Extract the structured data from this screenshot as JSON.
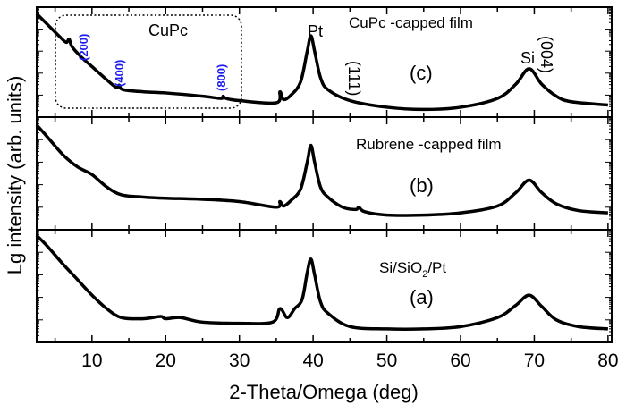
{
  "chart_data": {
    "type": "line",
    "xlabel": "2-Theta/Omega (deg)",
    "ylabel": "Lg intensity (arb. units)",
    "xlim": [
      2.5,
      80.5
    ],
    "xticks": [
      10,
      20,
      30,
      40,
      50,
      60,
      70,
      80
    ],
    "y_scale": "log",
    "y_tick_labels_shown": false,
    "grid": false,
    "panels": [
      {
        "id": "c",
        "label": "(c)",
        "title": "CuPc -capped film",
        "ylim": [
          0,
          10
        ],
        "points": [
          [
            2.5,
            9.4
          ],
          [
            4,
            8.4
          ],
          [
            5.5,
            7.4
          ],
          [
            6.5,
            6.8
          ],
          [
            6.9,
            7.1
          ],
          [
            7.3,
            6.4
          ],
          [
            8.5,
            5.5
          ],
          [
            10,
            4.6
          ],
          [
            12,
            3.4
          ],
          [
            13.3,
            2.7
          ],
          [
            13.7,
            2.9
          ],
          [
            14.2,
            2.5
          ],
          [
            17,
            2.3
          ],
          [
            20,
            2.2
          ],
          [
            25,
            1.9
          ],
          [
            27.5,
            1.7
          ],
          [
            27.8,
            1.9
          ],
          [
            28.2,
            1.7
          ],
          [
            30,
            1.5
          ],
          [
            35,
            1.3
          ],
          [
            35.5,
            2.3
          ],
          [
            36,
            1.6
          ],
          [
            37,
            2.0
          ],
          [
            38.3,
            3.2
          ],
          [
            39.2,
            6.0
          ],
          [
            39.7,
            7.4
          ],
          [
            40.2,
            6.0
          ],
          [
            41,
            3.6
          ],
          [
            42,
            2.5
          ],
          [
            45,
            1.5
          ],
          [
            50,
            0.9
          ],
          [
            55,
            0.7
          ],
          [
            60,
            0.9
          ],
          [
            65,
            1.7
          ],
          [
            67.5,
            3.0
          ],
          [
            69.3,
            4.4
          ],
          [
            71,
            3.0
          ],
          [
            73,
            1.9
          ],
          [
            75,
            1.4
          ],
          [
            80,
            1.1
          ]
        ],
        "annotations": {
          "box_title": "CuPc",
          "cupc_peaks": [
            "(200)",
            "(400)",
            "(800)"
          ],
          "pt_label": "Pt",
          "pt_index": "(111)",
          "si_label": "Si",
          "si_index": "(004)"
        }
      },
      {
        "id": "b",
        "label": "(b)",
        "title": "Rubrene -capped film",
        "ylim": [
          0,
          10
        ],
        "points": [
          [
            2.5,
            9.3
          ],
          [
            4,
            8.2
          ],
          [
            6,
            6.7
          ],
          [
            8,
            5.6
          ],
          [
            10,
            4.9
          ],
          [
            12,
            3.8
          ],
          [
            14,
            3.1
          ],
          [
            17,
            2.9
          ],
          [
            20,
            2.8
          ],
          [
            25,
            2.7
          ],
          [
            30,
            2.5
          ],
          [
            35,
            2.0
          ],
          [
            35.5,
            2.5
          ],
          [
            36,
            2.1
          ],
          [
            37,
            2.6
          ],
          [
            38.3,
            3.6
          ],
          [
            39.2,
            6.0
          ],
          [
            39.7,
            7.5
          ],
          [
            40.2,
            6.0
          ],
          [
            41,
            3.8
          ],
          [
            42,
            2.9
          ],
          [
            44,
            2.0
          ],
          [
            45.8,
            1.8
          ],
          [
            46.2,
            2.0
          ],
          [
            47,
            1.6
          ],
          [
            50,
            1.3
          ],
          [
            55,
            1.3
          ],
          [
            60,
            1.5
          ],
          [
            65,
            2.1
          ],
          [
            67.5,
            3.3
          ],
          [
            69.3,
            4.4
          ],
          [
            71,
            3.3
          ],
          [
            73,
            2.3
          ],
          [
            76,
            1.7
          ],
          [
            80,
            1.5
          ]
        ]
      },
      {
        "id": "a",
        "label": "(a)",
        "title": "Si/SiO",
        "title_sub": "2",
        "title_end": "/Pt",
        "ylim": [
          0,
          10
        ],
        "points": [
          [
            2.5,
            9.5
          ],
          [
            4,
            8.5
          ],
          [
            6,
            7.0
          ],
          [
            8,
            5.6
          ],
          [
            10,
            4.2
          ],
          [
            12,
            3.0
          ],
          [
            14,
            2.2
          ],
          [
            17,
            2.1
          ],
          [
            19.3,
            2.3
          ],
          [
            20,
            2.1
          ],
          [
            22,
            2.2
          ],
          [
            25,
            1.8
          ],
          [
            30,
            1.7
          ],
          [
            34.5,
            1.8
          ],
          [
            35.5,
            3.0
          ],
          [
            36.5,
            2.2
          ],
          [
            37.5,
            3.0
          ],
          [
            38.5,
            3.8
          ],
          [
            39.2,
            6.2
          ],
          [
            39.7,
            7.4
          ],
          [
            40.2,
            6.0
          ],
          [
            41,
            3.6
          ],
          [
            42,
            2.6
          ],
          [
            45,
            1.4
          ],
          [
            50,
            1.2
          ],
          [
            55,
            1.2
          ],
          [
            60,
            1.4
          ],
          [
            65,
            2.2
          ],
          [
            67.5,
            3.3
          ],
          [
            69.3,
            4.2
          ],
          [
            71,
            3.2
          ],
          [
            73,
            2.0
          ],
          [
            76,
            1.4
          ],
          [
            80,
            1.2
          ]
        ]
      }
    ],
    "colors": {
      "line": "#000000",
      "cupc_index": "#1c1cf0",
      "box": "#000000"
    }
  }
}
